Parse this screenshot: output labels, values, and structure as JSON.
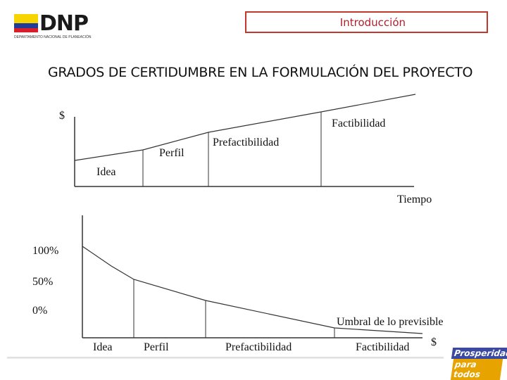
{
  "header": {
    "logo_text": "DNP",
    "logo_subtitle": "DEPARTAMENTO NACIONAL DE PLANEACIÓN",
    "section": "Introducción",
    "flag_colors": [
      "#f5d400",
      "#1f3c99",
      "#d81e2a"
    ],
    "accent": "#c0392b"
  },
  "title": "GRADOS DE CERTIDUMBRE EN LA FORMULACIÓN DEL PROYECTO",
  "top_diagram": {
    "y_label": "$",
    "x_label": "Tiempo",
    "stages": [
      "Idea",
      "Perfil",
      "Prefactibilidad",
      "Factibilidad"
    ]
  },
  "bottom_diagram": {
    "y_ticks": [
      "100%",
      "50%",
      "0%"
    ],
    "curve_label": "Umbral de lo previsible",
    "stages": [
      "Idea",
      "Perfil",
      "Prefactibilidad",
      "Factibilidad"
    ],
    "end_label": "$"
  },
  "footer": {
    "badge_line1": "Prosperidad",
    "badge_line2": "para todos"
  }
}
